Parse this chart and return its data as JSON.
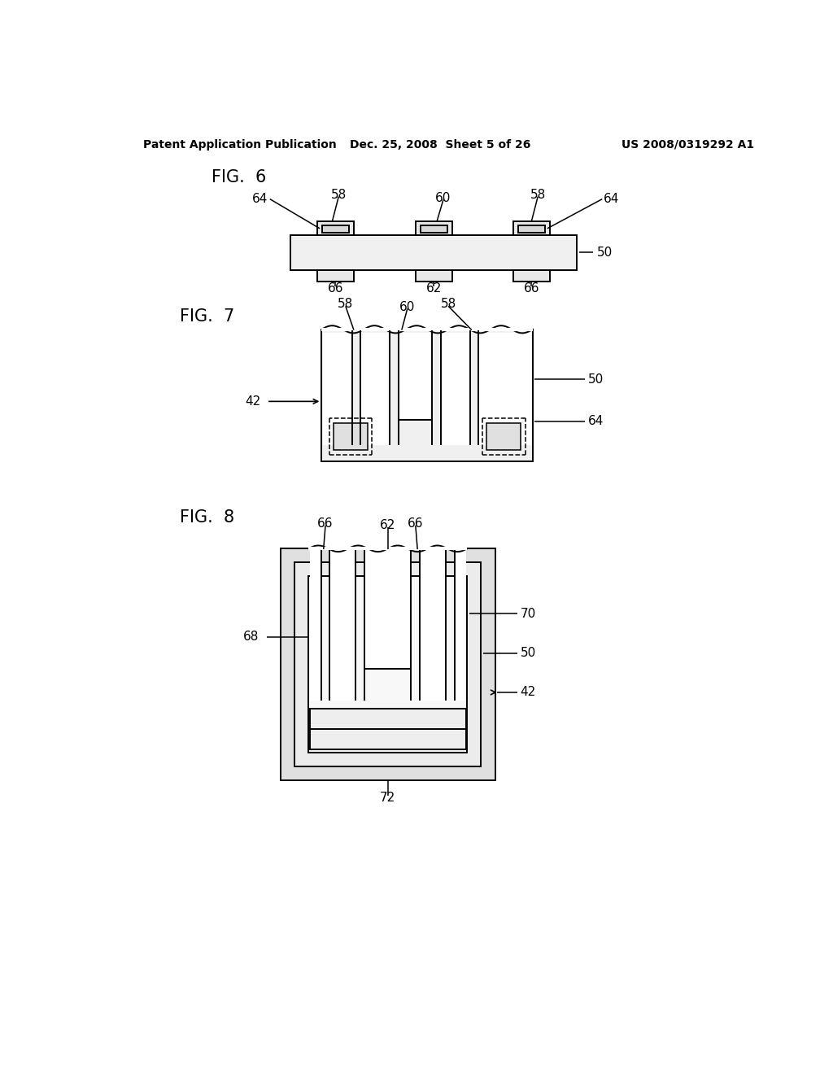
{
  "background_color": "#ffffff",
  "header_left": "Patent Application Publication",
  "header_center": "Dec. 25, 2008  Sheet 5 of 26",
  "header_right": "US 2008/0319292 A1",
  "header_fontsize": 10,
  "fig6_label": "FIG.  6",
  "fig7_label": "FIG.  7",
  "fig8_label": "FIG.  8",
  "fig_label_fontsize": 15,
  "annotation_fontsize": 11,
  "line_color": "#000000",
  "line_width": 1.4,
  "body_fill": "#f0f0f0",
  "slot_fill": "#ffffff",
  "inner_fill": "#e8e8e8"
}
